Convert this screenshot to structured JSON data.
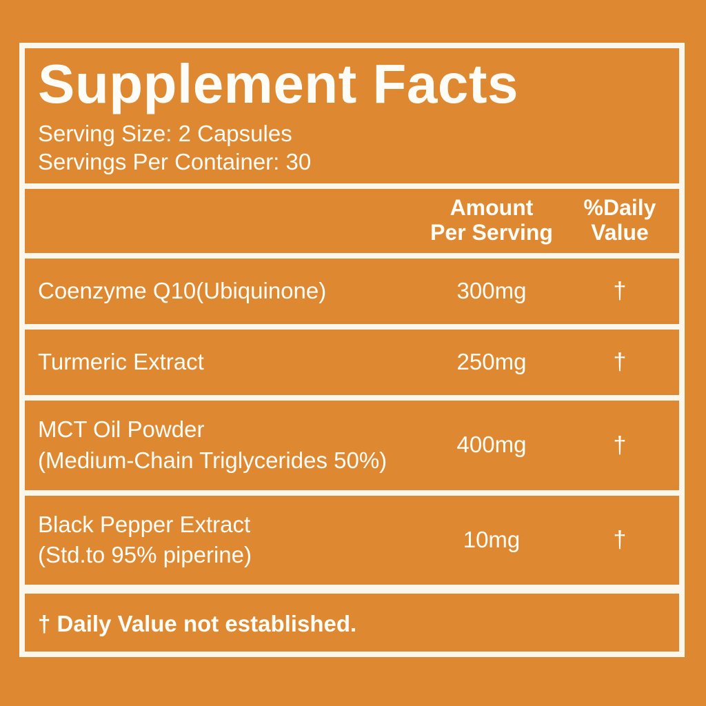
{
  "panel": {
    "title": "Supplement Facts",
    "serving_size": "Serving Size: 2 Capsules",
    "servings_per_container": "Servings Per Container: 30",
    "columns": {
      "amount_line1": "Amount",
      "amount_line2": "Per Serving",
      "dv_line1": "%Daily",
      "dv_line2": "Value"
    },
    "rows": [
      {
        "name": "Coenzyme Q10(Ubiquinone)",
        "amount": "300mg",
        "daily_value": "†"
      },
      {
        "name": "Turmeric Extract",
        "amount": "250mg",
        "daily_value": "†"
      },
      {
        "name": "MCT Oil Powder",
        "name_line2": "(Medium-Chain Triglycerides 50%)",
        "amount": "400mg",
        "daily_value": "†"
      },
      {
        "name": "Black Pepper Extract",
        "name_line2": "(Std.to 95% piperine)",
        "amount": "10mg",
        "daily_value": "†"
      }
    ],
    "footnote": "† Daily Value not established.",
    "colors": {
      "background": "#DE8931",
      "line": "#FBF7ED",
      "text": "#FDFCF7"
    }
  }
}
